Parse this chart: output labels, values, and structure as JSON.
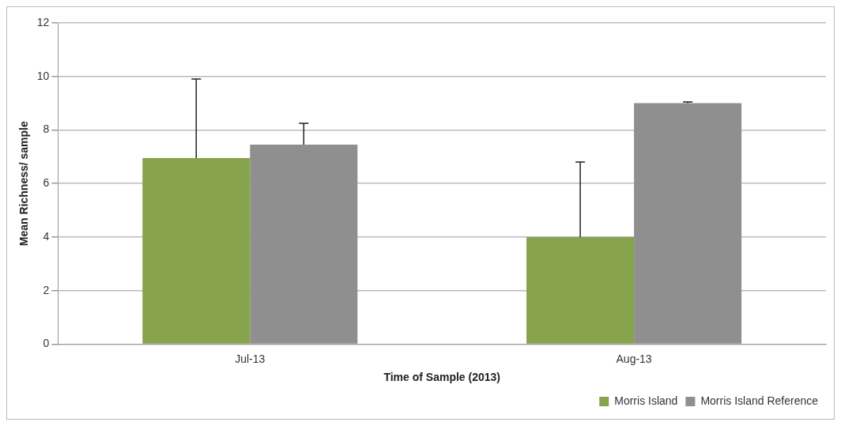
{
  "chart_data": {
    "type": "bar",
    "xlabel": "Time of Sample (2013)",
    "ylabel": "Mean Richness/ sample",
    "categories": [
      "Jul-13",
      "Aug-13"
    ],
    "series": [
      {
        "name": "Morris Island",
        "color": "#87a34b",
        "values": [
          6.95,
          4
        ],
        "errors": [
          [
            6.95,
            9.9
          ],
          [
            4,
            6.8
          ]
        ]
      },
      {
        "name": "Morris Island Reference",
        "color": "#8f8f8f",
        "values": [
          7.45,
          9
        ],
        "errors": [
          [
            7.45,
            8.25
          ],
          [
            9,
            9.05
          ]
        ]
      }
    ],
    "ylim": [
      0,
      12
    ],
    "yticks": [
      0,
      2,
      4,
      6,
      8,
      10,
      12
    ],
    "grid": "y",
    "legend": "bottom right"
  }
}
